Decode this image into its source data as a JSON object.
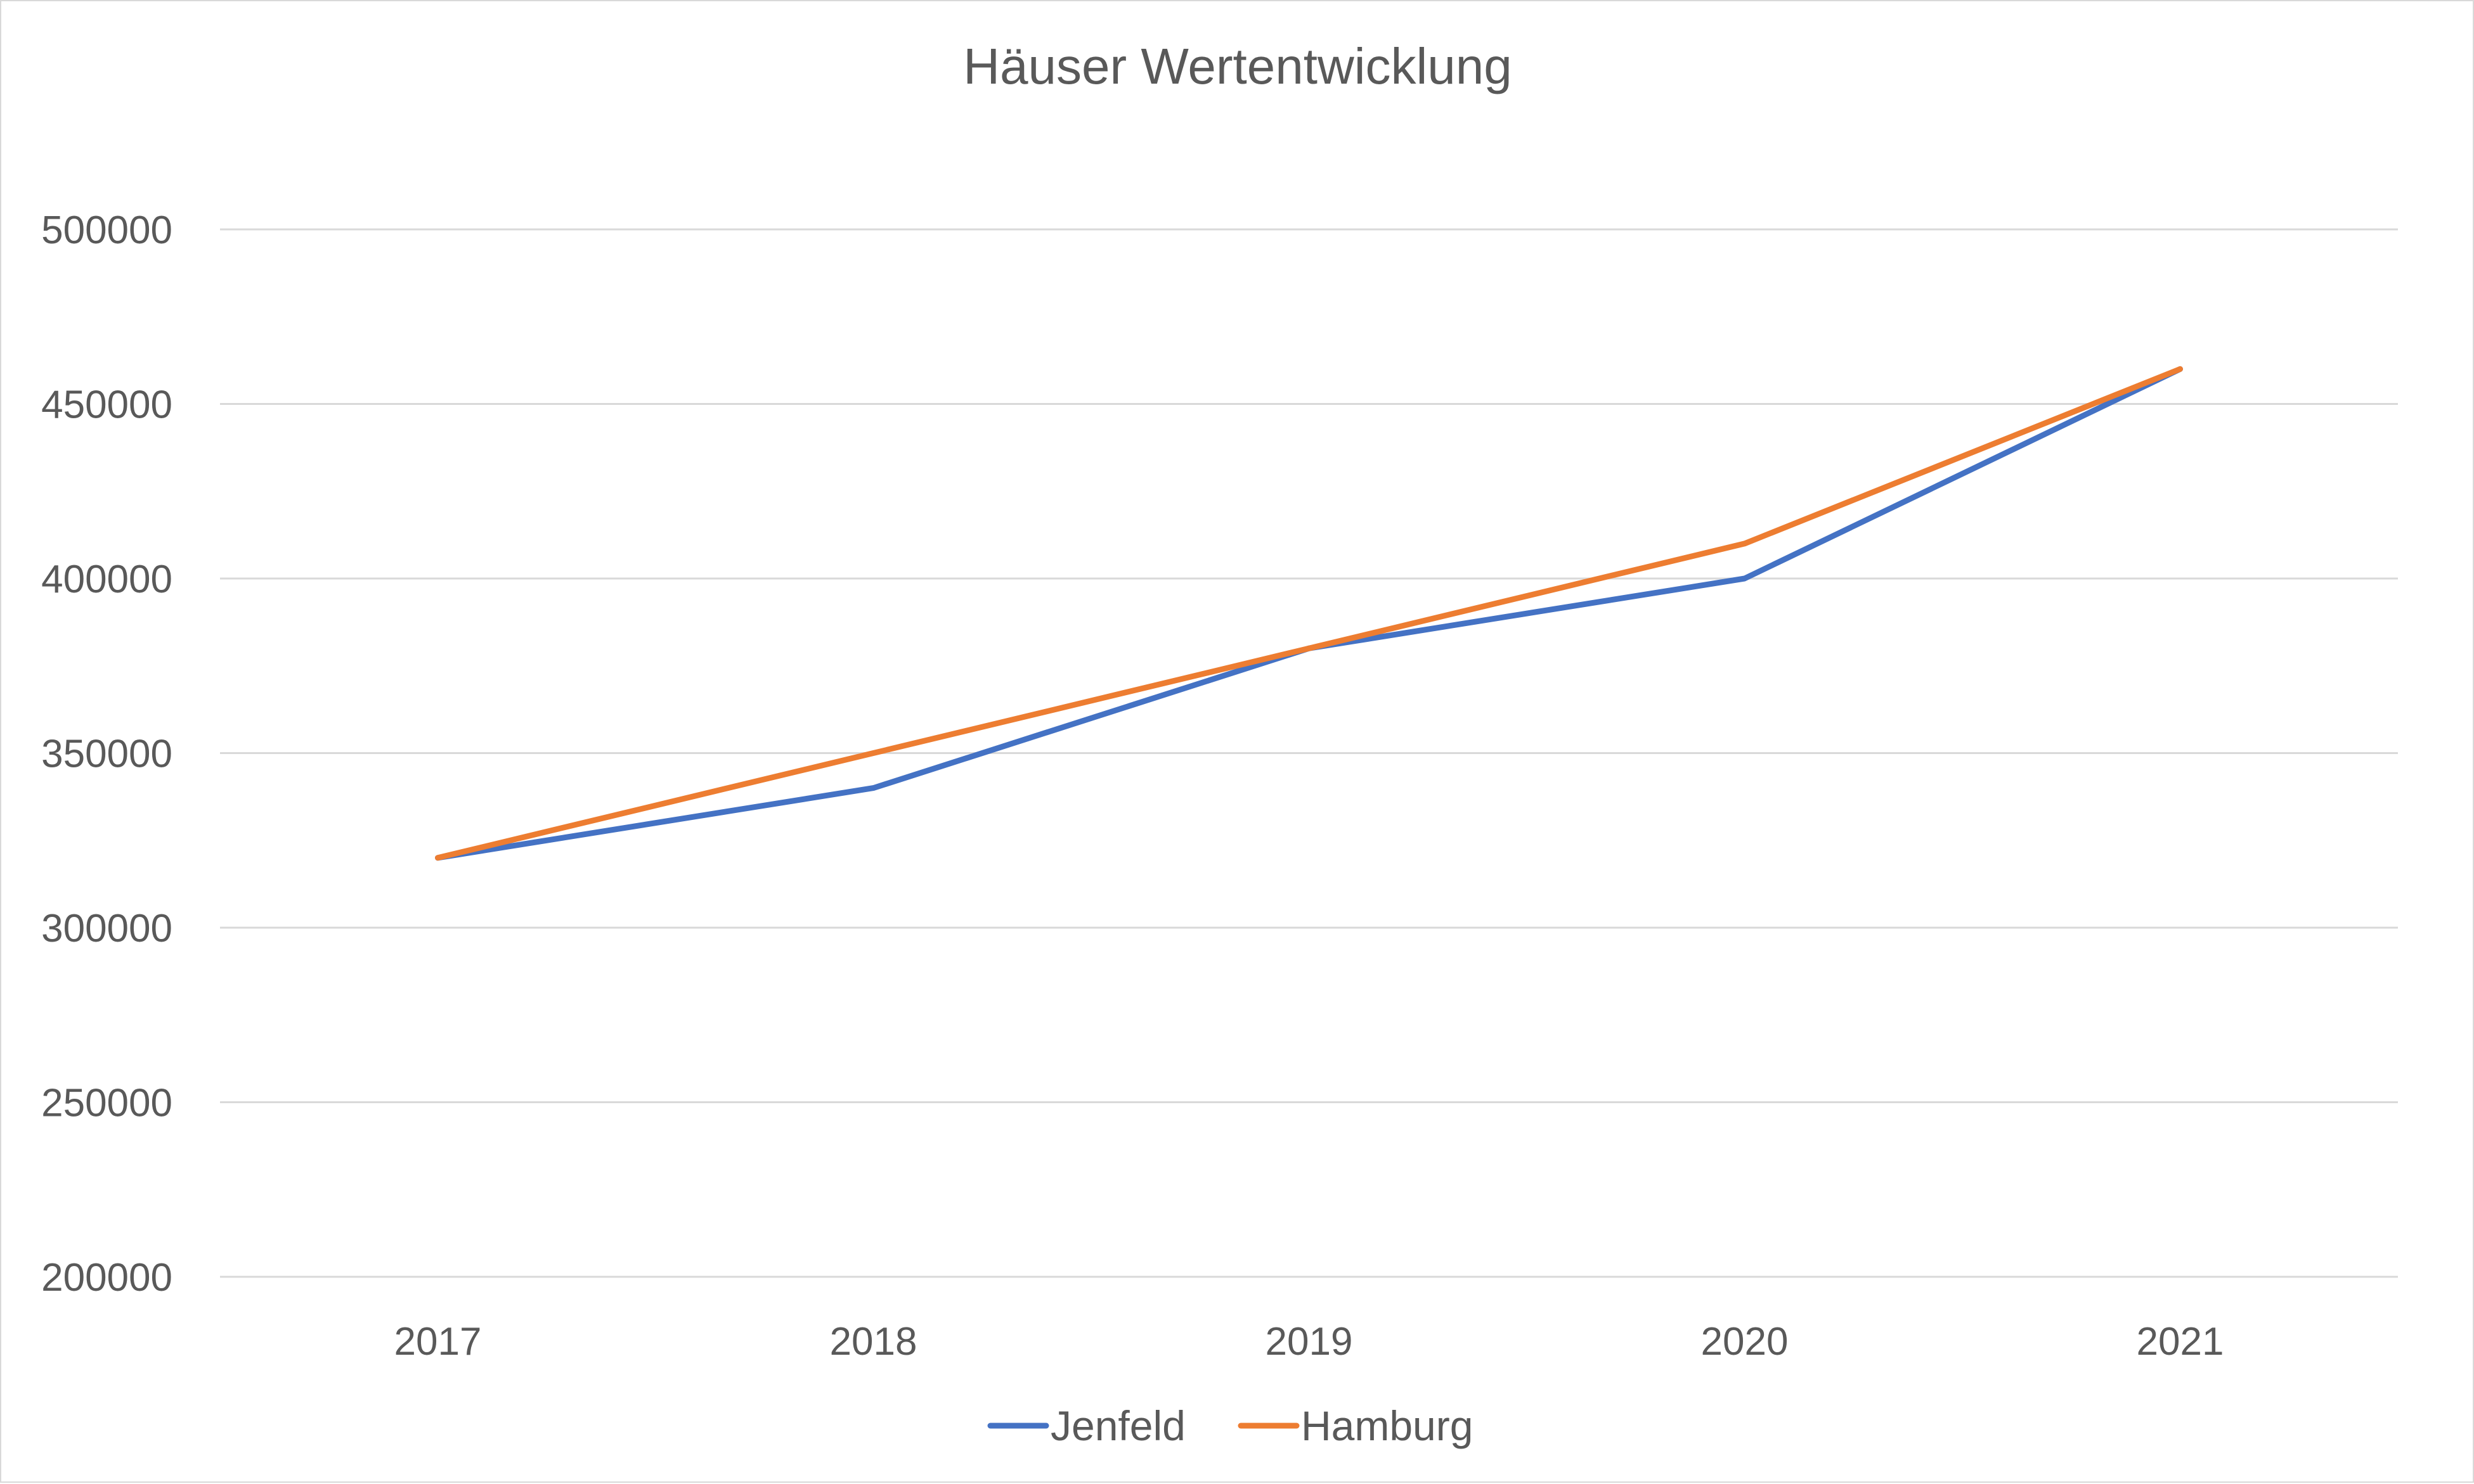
{
  "chart_data": {
    "type": "line",
    "title": "Häuser Wertentwicklung",
    "xlabel": "",
    "ylabel": "",
    "categories": [
      "2017",
      "2018",
      "2019",
      "2020",
      "2021"
    ],
    "ylim": [
      200000,
      500000
    ],
    "yticks": [
      "200000",
      "250000",
      "300000",
      "350000",
      "400000",
      "450000",
      "500000"
    ],
    "grid": "horizontal",
    "legend_position": "bottom",
    "series": [
      {
        "name": "Jenfeld",
        "color": "#4472c4",
        "values": [
          320000,
          340000,
          380000,
          400000,
          460000
        ]
      },
      {
        "name": "Hamburg",
        "color": "#ed7d31",
        "values": [
          320000,
          350000,
          380000,
          410000,
          460000
        ]
      }
    ]
  }
}
